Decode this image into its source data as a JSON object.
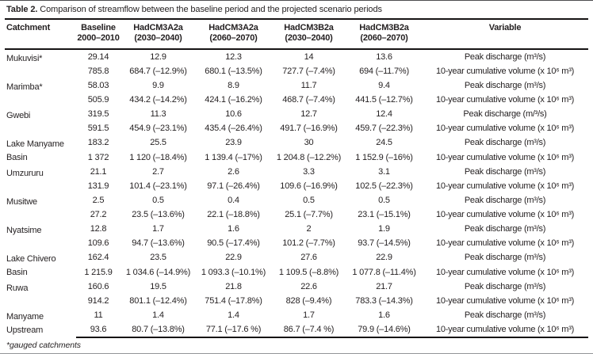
{
  "colors": {
    "text": "#231f20",
    "rule": "#161314",
    "background": "#ffffff"
  },
  "caption": {
    "label": "Table 2.",
    "text": " Comparison of streamflow between the baseline period and the projected scenario periods"
  },
  "table": {
    "columns": [
      {
        "label": "Catchment",
        "sub": ""
      },
      {
        "label": "Baseline",
        "sub": "2000–2010"
      },
      {
        "label": "HadCM3A2a",
        "sub": "(2030–2040)"
      },
      {
        "label": "HadCM3A2a",
        "sub": "(2060–2070)"
      },
      {
        "label": "HadCM3B2a",
        "sub": "(2030–2040)"
      },
      {
        "label": "HadCM3B2a",
        "sub": "(2060–2070)"
      },
      {
        "label": "Variable",
        "sub": ""
      }
    ],
    "groups": [
      {
        "catchment": "Mukuvisi*",
        "rows": [
          {
            "values": [
              "29.14",
              "12.9",
              "12.3",
              "14",
              "13.6"
            ],
            "variable": "Peak discharge (m³/s)"
          },
          {
            "values": [
              "785.8",
              "684.7 (–12.9%)",
              "680.1 (–13.5%)",
              "727.7 (–7.4%)",
              "694 (–11.7%)"
            ],
            "variable": "10-year cumulative volume (x 10⁶ m³)"
          }
        ]
      },
      {
        "catchment": "Marimba*",
        "rows": [
          {
            "values": [
              "58.03",
              "9.9",
              "8.9",
              "11.7",
              "9.4"
            ],
            "variable": "Peak discharge (m³/s)"
          },
          {
            "values": [
              "505.9",
              "434.2 (–14.2%)",
              "424.1 (–16.2%)",
              "468.7 (–7.4%)",
              "441.5 (–12.7%)"
            ],
            "variable": "10-year cumulative volume (x 10⁶ m³)"
          }
        ]
      },
      {
        "catchment": "Gwebi",
        "rows": [
          {
            "values": [
              "319.5",
              "11.3",
              "10.6",
              "12.7",
              "12.4"
            ],
            "variable": "Peak discharge (m/³/s)"
          },
          {
            "values": [
              "591.5",
              "454.9 (–23.1%)",
              "435.4 (–26.4%)",
              "491.7 (–16.9%)",
              "459.7 (–22.3%)"
            ],
            "variable": "10-year cumulative volume (x 10⁶ m³)"
          }
        ]
      },
      {
        "catchment": "Lake Manyame Basin",
        "rows": [
          {
            "values": [
              "183.2",
              "25.5",
              "23.9",
              "30",
              "24.5"
            ],
            "variable": "Peak discharge (m³/s)"
          },
          {
            "values": [
              "1 372",
              "1 120 (–18.4%)",
              "1 139.4 (–17%)",
              "1 204.8 (–12.2%)",
              "1 152.9 (–16%)"
            ],
            "variable": "10-year cumulative volume (x 10⁶ m³)"
          }
        ]
      },
      {
        "catchment": "Umzururu",
        "rows": [
          {
            "values": [
              "21.1",
              "2.7",
              "2.6",
              "3.3",
              "3.1"
            ],
            "variable": "Peak discharge (m³/s)"
          },
          {
            "values": [
              "131.9",
              "101.4 (–23.1%)",
              "97.1 (–26.4%)",
              "109.6 (–16.9%)",
              "102.5 (–22.3%)"
            ],
            "variable": "10-year cumulative volume (x 10⁶ m³)"
          }
        ]
      },
      {
        "catchment": "Musitwe",
        "rows": [
          {
            "values": [
              "2.5",
              "0.5",
              "0.4",
              "0.5",
              "0.5"
            ],
            "variable": "Peak discharge (m³/s)"
          },
          {
            "values": [
              "27.2",
              "23.5 (–13.6%)",
              "22.1 (–18.8%)",
              "25.1 (–7.7%)",
              "23.1 (–15.1%)"
            ],
            "variable": "10-year cumulative volume (x 10⁶ m³)"
          }
        ]
      },
      {
        "catchment": "Nyatsime",
        "rows": [
          {
            "values": [
              "12.8",
              "1.7",
              "1.6",
              "2",
              "1.9"
            ],
            "variable": "Peak discharge (m³/s)"
          },
          {
            "values": [
              "109.6",
              "94.7 (–13.6%)",
              "90.5 (–17.4%)",
              "101.2 (–7.7%)",
              "93.7 (–14.5%)"
            ],
            "variable": "10-year cumulative volume (x 10⁶ m³)"
          }
        ]
      },
      {
        "catchment": "Lake Chivero Basin",
        "rows": [
          {
            "values": [
              "162.4",
              "23.5",
              "22.9",
              "27.6",
              "22.9"
            ],
            "variable": "Peak discharge (m³/s)"
          },
          {
            "values": [
              "1 215.9",
              "1 034.6 (–14.9%)",
              "1 093.3 (–10.1%)",
              "1 109.5 (–8.8%)",
              "1 077.8 (–11.4%)"
            ],
            "variable": "10-year cumulative volume (x 10⁶ m³)"
          }
        ]
      },
      {
        "catchment": "Ruwa",
        "rows": [
          {
            "values": [
              "160.6",
              "19.5",
              "21.8",
              "22.6",
              "21.7"
            ],
            "variable": "Peak discharge (m³/s)"
          },
          {
            "values": [
              "914.2",
              "801.1 (–12.4%)",
              "751.4 (–17.8%)",
              "828 (–9.4%)",
              "783.3 (–14.3%)"
            ],
            "variable": "10-year cumulative volume (x 10⁶ m³)"
          }
        ]
      },
      {
        "catchment": "Manyame Upstream",
        "rows": [
          {
            "values": [
              "11",
              "1.4",
              "1.4",
              "1.7",
              "1.6"
            ],
            "variable": "Peak discharge (m³/s)"
          },
          {
            "values": [
              "93.6",
              "80.7 (–13.8%)",
              "77.1 (–17.6 %)",
              "86.7 (–7.4 %)",
              "79.9 (–14.6%)"
            ],
            "variable": "10-year cumulative volume (x 10⁶ m³)"
          }
        ]
      }
    ]
  },
  "footnote": "*gauged catchments"
}
